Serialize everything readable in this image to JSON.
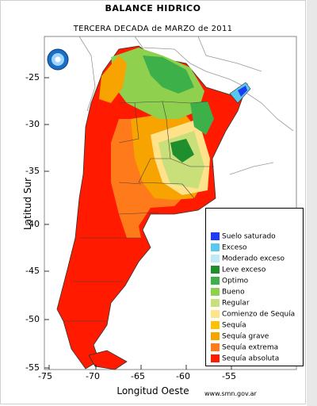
{
  "title": "BALANCE HIDRICO",
  "subtitle": "TERCERA DECADA de MARZO de 2011",
  "axes": {
    "ylabel": "Latitud Sur",
    "xlabel": "Longitud Oeste",
    "yticks": [
      "-25",
      "-30",
      "-35",
      "-40",
      "-45",
      "-50",
      "-55"
    ],
    "xticks": [
      "-75",
      "-70",
      "-65",
      "-60",
      "-55"
    ]
  },
  "source": "www.smn.gov.ar",
  "legend": [
    {
      "label": "Suelo saturado",
      "color": "#1c3cf5"
    },
    {
      "label": "Exceso",
      "color": "#59c8ef"
    },
    {
      "label": "Moderado exceso",
      "color": "#bfe9f5"
    },
    {
      "label": "Leve exceso",
      "color": "#1f8f2e"
    },
    {
      "label": "Optimo",
      "color": "#3db04a"
    },
    {
      "label": "Bueno",
      "color": "#8fd14f"
    },
    {
      "label": "Regular",
      "color": "#c9e07a"
    },
    {
      "label": "Comienzo de Sequía",
      "color": "#ffe28a"
    },
    {
      "label": "Sequía",
      "color": "#ffc000"
    },
    {
      "label": "Sequía grave",
      "color": "#f7a300"
    },
    {
      "label": "Sequía extrema",
      "color": "#ff7a1a"
    },
    {
      "label": "Sequía absoluta",
      "color": "#ff1a00"
    }
  ]
}
